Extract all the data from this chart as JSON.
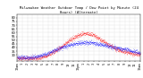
{
  "title": "Milwaukee Weather Outdoor Temp / Dew Point by Minute (24 Hours) (Alternate)",
  "background_color": "#ffffff",
  "plot_bg_color": "#ffffff",
  "grid_color": "#aaaaaa",
  "temp_color": "#ff0000",
  "dew_color": "#0000ff",
  "ylim": [
    22,
    85
  ],
  "xlim": [
    0,
    1440
  ],
  "ytick_values": [
    30,
    35,
    40,
    45,
    50,
    55,
    60,
    65,
    70,
    75,
    80
  ],
  "ylabel_fontsize": 2.8,
  "xlabel_fontsize": 2.5,
  "num_points": 1440,
  "seed": 42
}
